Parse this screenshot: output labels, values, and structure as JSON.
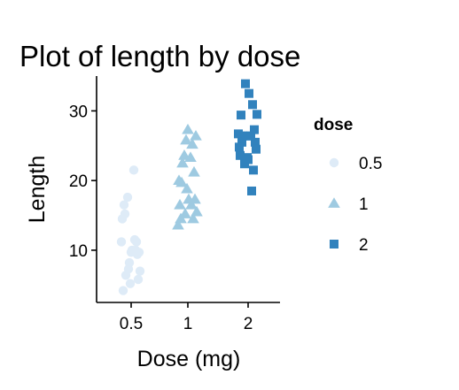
{
  "chart_data": {
    "type": "scatter",
    "title": "Plot of length  by dose",
    "xlabel": "Dose (mg)",
    "ylabel": "Length",
    "categories": [
      "0.5",
      "1",
      "2"
    ],
    "ylim": [
      2.5,
      35
    ],
    "yticks": [
      10,
      20,
      30
    ],
    "grid": false,
    "legend": {
      "title": "dose",
      "position": "right"
    },
    "colors": {
      "0.5": "#DEEBF7",
      "1": "#9ECAE1",
      "2": "#3182BD"
    },
    "series": [
      {
        "name": "0.5",
        "shape": "circle",
        "x": "0.5",
        "values": [
          4.2,
          11.5,
          7.3,
          5.8,
          6.4,
          10.0,
          11.2,
          11.2,
          5.2,
          7.0,
          15.2,
          21.5,
          17.6,
          9.7,
          14.5,
          10.0,
          8.2,
          9.4,
          16.5,
          9.7
        ]
      },
      {
        "name": "1",
        "shape": "triangle",
        "x": "1",
        "values": [
          16.5,
          16.5,
          15.2,
          17.3,
          22.5,
          17.3,
          13.6,
          14.5,
          18.8,
          15.5,
          19.7,
          23.3,
          23.6,
          26.4,
          20.0,
          25.2,
          25.8,
          21.2,
          14.5,
          27.3
        ]
      },
      {
        "name": "2",
        "shape": "square",
        "x": "2",
        "values": [
          23.6,
          18.5,
          33.9,
          25.5,
          26.4,
          32.5,
          26.7,
          21.5,
          23.3,
          29.5,
          25.5,
          26.4,
          22.4,
          24.5,
          24.8,
          30.9,
          26.4,
          27.3,
          29.4,
          23.0
        ]
      }
    ]
  }
}
